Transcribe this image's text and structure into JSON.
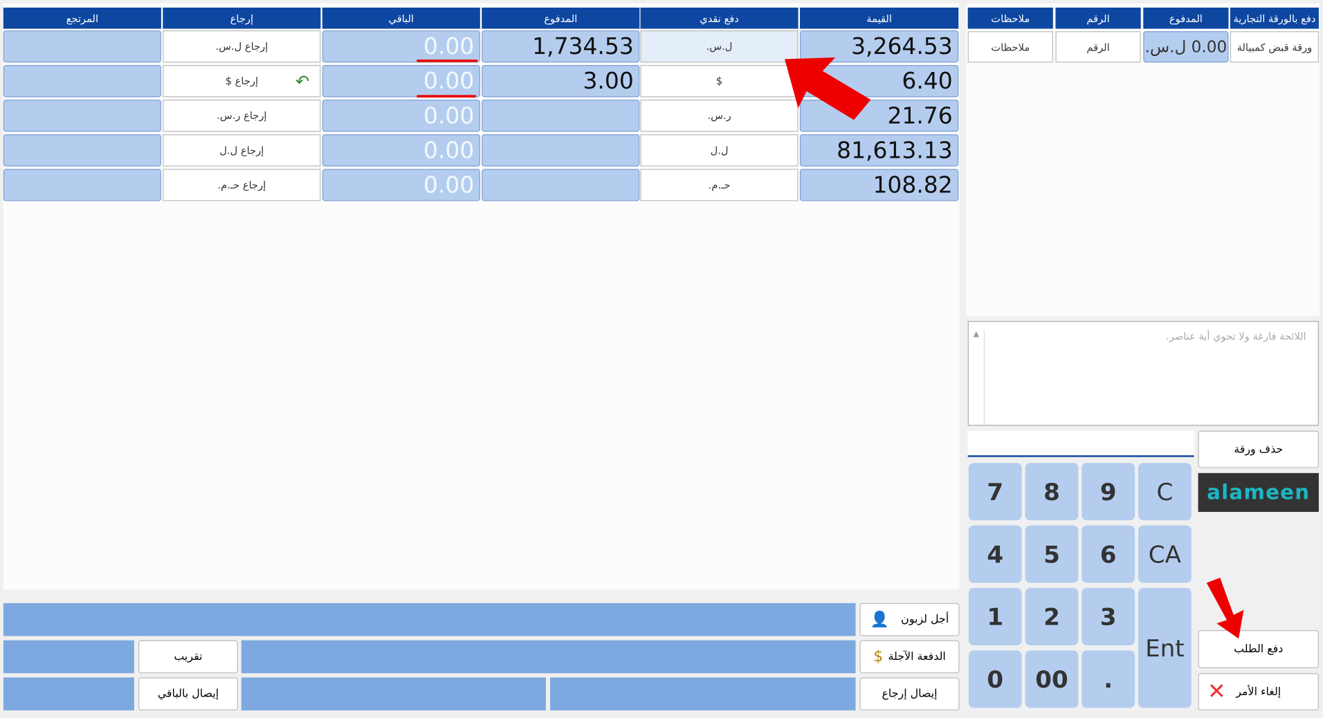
{
  "cash_table": {
    "headers": [
      "القيمة",
      "دفع نقدي",
      "المدفوع",
      "الباقي",
      "إرجاع",
      "المرتجع"
    ],
    "rows": [
      {
        "value": "3,264.53",
        "currency": "ل.س.",
        "paid": "1,734.53",
        "remaining": "0.00",
        "return": "إرجاع ل.س."
      },
      {
        "value": "6.40",
        "currency": "$",
        "paid": "3.00",
        "remaining": "0.00",
        "return": "إرجاع $"
      },
      {
        "value": "21.76",
        "currency": "ر.س.",
        "remaining": "0.00",
        "return": "إرجاع ر.س."
      },
      {
        "value": "81,613.13",
        "currency": "ل.ل",
        "remaining": "0.00",
        "return": "إرجاع ل.ل"
      },
      {
        "value": "108.82",
        "currency": "حـ.م.",
        "remaining": "0.00",
        "return": "إرجاع حـ.م."
      }
    ]
  },
  "paper_table": {
    "headers": [
      "دفع بالورقة التجارية",
      "المدفوع",
      "الرقم",
      "ملاحظات"
    ],
    "row": [
      "ورقة قبض كمبيالة",
      "0.00 ل.س.",
      "الرقم",
      "ملاحظات"
    ]
  },
  "list_empty": "اللائحة فارغة ولا تحوي أية عناصر.",
  "delete_paper": "حذف ورقة",
  "logo": "alameen",
  "keypad": [
    [
      "7",
      "8",
      "9",
      "C"
    ],
    [
      "4",
      "5",
      "6",
      "CA"
    ],
    [
      "1",
      "2",
      "3",
      "Ent"
    ],
    [
      "0",
      "00",
      "."
    ]
  ],
  "pay_order": "دفع الطلب",
  "cancel": "إلغاء الأمر",
  "bottom_buttons": {
    "defer_customer": "أجل لزبون",
    "deferred_payment": "الدفعة الآجلة",
    "return_receipt": "إيصال إرجاع",
    "rounding": "تقريب",
    "receipt_remaining": "إيصال بالباقي"
  }
}
